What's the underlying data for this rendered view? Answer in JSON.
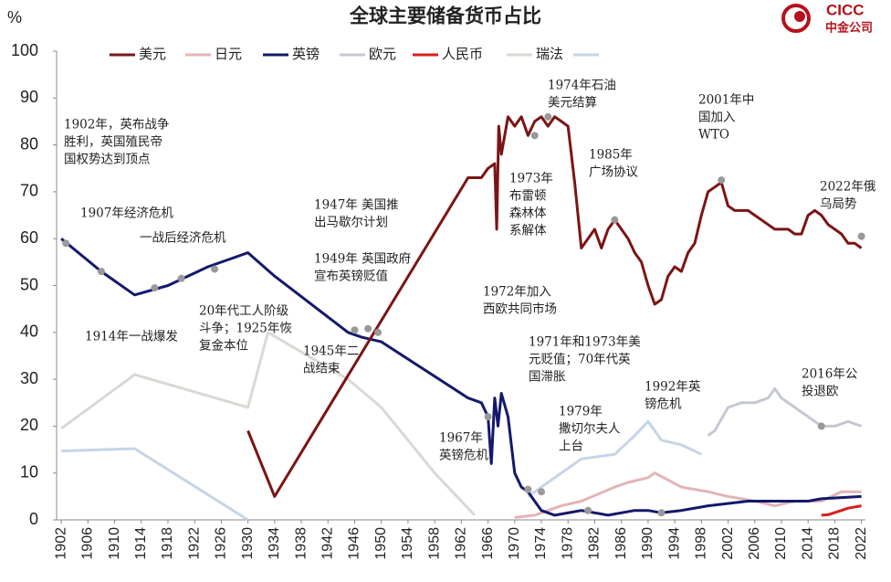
{
  "chart_data": {
    "type": "line",
    "title": "全球主要储备货币占比",
    "y_label": "%",
    "logo": {
      "en": "CICC",
      "zh": "中金公司"
    },
    "xlim": [
      1901.3,
      2022.6
    ],
    "xticks": [
      1902,
      1906,
      1910,
      1914,
      1918,
      1922,
      1926,
      1930,
      1934,
      1938,
      1942,
      1946,
      1950,
      1954,
      1958,
      1962,
      1966,
      1970,
      1974,
      1978,
      1982,
      1986,
      1990,
      1994,
      1998,
      2002,
      2006,
      2010,
      2014,
      2018,
      2022
    ],
    "ylim": [
      0,
      100
    ],
    "yticks": [
      0,
      10,
      20,
      30,
      40,
      50,
      60,
      70,
      80,
      90,
      100
    ],
    "series": [
      {
        "name": "美元",
        "color": "#7b1416",
        "x": [
          1930,
          1934,
          1963,
          1965,
          1966,
          1967,
          1967.3,
          1967.6,
          1968,
          1969,
          1970,
          1971,
          1972,
          1973,
          1974,
          1975,
          1976,
          1977,
          1978,
          1979,
          1980,
          1981,
          1982,
          1983,
          1984,
          1985,
          1986,
          1987,
          1988,
          1989,
          1990,
          1991,
          1992,
          1993,
          1994,
          1995,
          1996,
          1997,
          1998,
          1999,
          2000,
          2001,
          2002,
          2003,
          2004,
          2005,
          2006,
          2007,
          2008,
          2009,
          2010,
          2011,
          2012,
          2013,
          2014,
          2015,
          2016,
          2017,
          2018,
          2019,
          2020,
          2021,
          2022
        ],
        "values": [
          19,
          5,
          73,
          73,
          75,
          76,
          62,
          84,
          78,
          86,
          84,
          86,
          82,
          85,
          86,
          84,
          86,
          85,
          84,
          72,
          58,
          60,
          62,
          58,
          62,
          64,
          62,
          60,
          57,
          55,
          50,
          46,
          47,
          52,
          54,
          53,
          57,
          59,
          65,
          70,
          71,
          72,
          67,
          66,
          66,
          66,
          65,
          64,
          63,
          62,
          62,
          62,
          61,
          61,
          65,
          66,
          65,
          63,
          62,
          61,
          59,
          59,
          58
        ]
      },
      {
        "name": "日元",
        "color": "#e3b4b4",
        "x": [
          1970,
          1973,
          1977,
          1980,
          1985,
          1987,
          1990,
          1991,
          1995,
          1999,
          2002,
          2006,
          2009,
          2012,
          2016,
          2019,
          2022
        ],
        "values": [
          0.5,
          1,
          3,
          4,
          7,
          8,
          9,
          10,
          7,
          6,
          5,
          4,
          3,
          4,
          4,
          6,
          6
        ]
      },
      {
        "name": "英镑",
        "color": "#14196b",
        "x": [
          1902,
          1908,
          1913,
          1918,
          1924,
          1930,
          1934,
          1945,
          1947,
          1950,
          1963,
          1965,
          1966,
          1966.5,
          1967,
          1967.5,
          1968,
          1969,
          1970,
          1971,
          1972,
          1974,
          1976,
          1980,
          1984,
          1988,
          1990,
          1992,
          1995,
          1999,
          2005,
          2014,
          2016,
          2022
        ],
        "values": [
          60,
          53,
          48,
          50,
          54,
          57,
          52,
          40,
          39,
          38,
          26,
          25,
          22,
          12,
          26,
          20,
          27,
          22,
          10,
          7,
          6,
          2,
          1,
          2,
          1,
          2,
          2,
          1.5,
          2,
          3,
          4,
          4,
          4.5,
          5
        ]
      },
      {
        "name": "欧元",
        "color": "#c4c8d2",
        "x": [
          1999,
          2000,
          2002,
          2004,
          2006,
          2008,
          2009,
          2010,
          2012,
          2014,
          2016,
          2018,
          2020,
          2022
        ],
        "values": [
          18,
          19,
          24,
          25,
          25,
          26,
          28,
          26,
          24,
          22,
          20,
          20,
          21,
          20
        ]
      },
      {
        "name": "人民币",
        "color": "#d61f1f",
        "x": [
          2016,
          2017,
          2019,
          2020,
          2022
        ],
        "values": [
          1,
          1.1,
          2,
          2.5,
          3
        ]
      },
      {
        "name": "瑞法",
        "color": "#d9d9d4",
        "x": [
          1902,
          1913,
          1930,
          1933,
          1945,
          1950,
          1958,
          1964
        ],
        "values": [
          19.5,
          31,
          24,
          40,
          30,
          24,
          10,
          1
        ]
      },
      {
        "name": null,
        "color": "#c6d4e8",
        "x": [
          1902,
          1913,
          1930,
          1950,
          1972,
          1976,
          1980,
          1985,
          1988,
          1990,
          1992,
          1995,
          1998
        ],
        "values": [
          14.7,
          15.2,
          0,
          null,
          5,
          9,
          13,
          14,
          18,
          21,
          17,
          16,
          14
        ]
      }
    ],
    "annotations": [
      {
        "text": [
          "1902年，英布战争",
          "胜利，英国殖民帝",
          "国权势达到顶点"
        ],
        "point": [
          1902.7,
          59
        ]
      },
      {
        "text": [
          "1907年经济危机"
        ],
        "point": [
          1908,
          53
        ]
      },
      {
        "text": [
          "一战后经济危机"
        ],
        "point": [
          1920,
          51.5
        ]
      },
      {
        "text": [
          "1914年一战爆发"
        ],
        "point": [
          1916,
          49.5
        ]
      },
      {
        "text": [
          "20年代工人阶级",
          "斗争；1925年恢",
          "复金本位"
        ],
        "point": [
          1925,
          53.5
        ]
      },
      {
        "text": [
          "1947年 美国推",
          "出马歇尔计划"
        ],
        "point": [
          1948,
          40.8
        ]
      },
      {
        "text": [
          "1949年 英国政府",
          "宣布英镑贬值"
        ],
        "point": [
          1949.5,
          40
        ]
      },
      {
        "text": [
          "1945年二",
          "战结束"
        ],
        "point": [
          1946,
          40.5
        ]
      },
      {
        "text": [
          "1967年",
          "英镑危机"
        ],
        "point": [
          1966,
          22
        ]
      },
      {
        "text": [
          "1972年加入",
          "西欧共同市场"
        ],
        "point": [
          1972,
          6.5
        ]
      },
      {
        "text": [
          "1971年和1973年美",
          "元贬值；70年代英",
          "国滞胀"
        ],
        "point": [
          1974,
          6
        ]
      },
      {
        "text": [
          "1973年",
          "布雷顿",
          "森林体",
          "系解体"
        ],
        "point": [
          1973,
          82
        ]
      },
      {
        "text": [
          "1974年石油",
          "美元结算"
        ],
        "point": [
          1975,
          86
        ]
      },
      {
        "text": [
          "1985年",
          "广场协议"
        ],
        "point": [
          1985,
          64
        ]
      },
      {
        "text": [
          "1979年",
          "撒切尔夫人",
          "上台"
        ],
        "point": [
          1981,
          2
        ]
      },
      {
        "text": [
          "1992年英",
          "镑危机"
        ],
        "point": [
          1992,
          1.5
        ]
      },
      {
        "text": [
          "2001年中",
          "国加入",
          "WTO"
        ],
        "point": [
          2001,
          72.5
        ]
      },
      {
        "text": [
          "2022年俄",
          "乌局势"
        ],
        "point": [
          2022,
          60.5
        ]
      },
      {
        "text": [
          "2016年公",
          "投退欧"
        ],
        "point": [
          2016,
          20
        ]
      }
    ]
  }
}
